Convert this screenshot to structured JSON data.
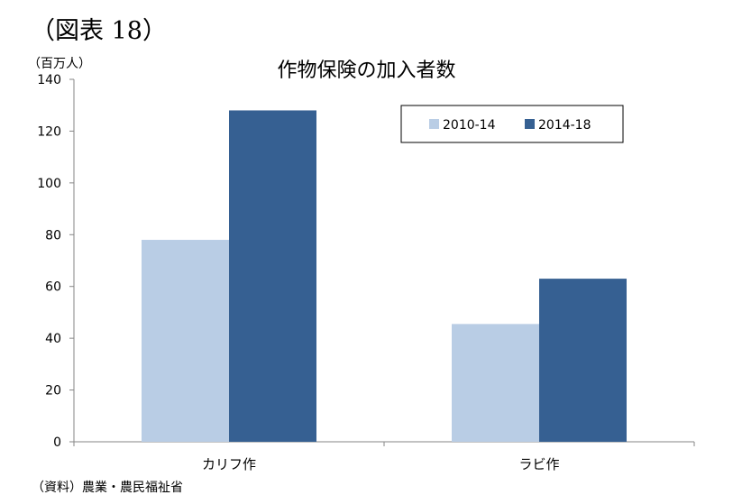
{
  "figure_label": "（図表 18）",
  "unit_label": "（百万人）",
  "source_note": "（資料）農業・農民福祉省",
  "chart_data": {
    "type": "bar",
    "title": "作物保険の加入者数",
    "xlabel": "",
    "ylabel": "",
    "categories": [
      "カリフ作",
      "ラビ作"
    ],
    "series": [
      {
        "name": "2010-14",
        "values": [
          78,
          45.5
        ],
        "color": "#b9cde5"
      },
      {
        "name": "2014-18",
        "values": [
          128,
          63
        ],
        "color": "#366092"
      }
    ],
    "ylim": [
      0,
      140
    ],
    "yticks": [
      0,
      20,
      40,
      60,
      80,
      100,
      120,
      140
    ],
    "grid": false,
    "legend_position": "top-right"
  }
}
